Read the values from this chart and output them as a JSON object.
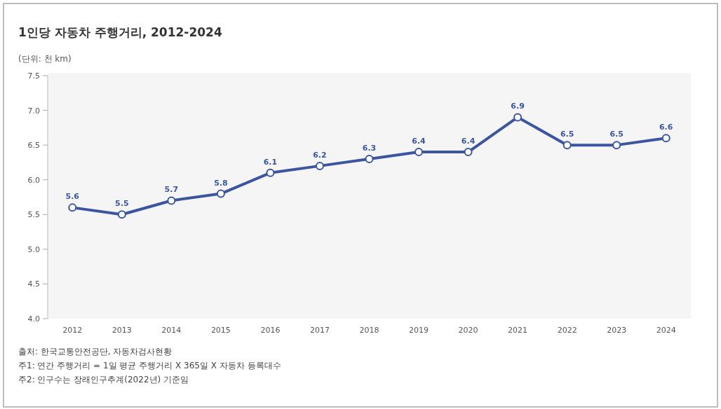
{
  "chart_data": {
    "type": "line",
    "title": "1인당 자동차 주행거리, 2012-2024",
    "ylabel": "(단위: 천 km)",
    "categories": [
      "2012",
      "2013",
      "2014",
      "2015",
      "2016",
      "2017",
      "2018",
      "2019",
      "2020",
      "2021",
      "2022",
      "2023",
      "2024"
    ],
    "series": [
      {
        "color": "#3b55a0",
        "values": [
          5.6,
          5.5,
          5.7,
          5.8,
          6.1,
          6.2,
          6.3,
          6.4,
          6.4,
          6.9,
          6.5,
          6.5,
          6.6
        ]
      }
    ],
    "ylim": [
      4.0,
      7.5
    ],
    "yticks": [
      {
        "value": 4.0,
        "label": "4.0"
      },
      {
        "value": 4.5,
        "label": "4.5"
      },
      {
        "value": 5.0,
        "label": "5.0"
      },
      {
        "value": 5.5,
        "label": "5.5"
      },
      {
        "value": 6.0,
        "label": "6.0"
      },
      {
        "value": 6.5,
        "label": "6.5"
      },
      {
        "value": 7.0,
        "label": "7.0"
      },
      {
        "value": 7.5,
        "label": "7.5"
      }
    ],
    "marker": "circle",
    "grid": false,
    "data_labels": true,
    "annotations": [
      "출처: 한국교통안전공단, 자동차검사현황",
      "주1: 연간 주행거리 = 1일 평균 주행거리 X 365일 X 자동차 등록대수",
      "주2: 인구수는 장래인구추계(2022년) 기준임"
    ]
  }
}
